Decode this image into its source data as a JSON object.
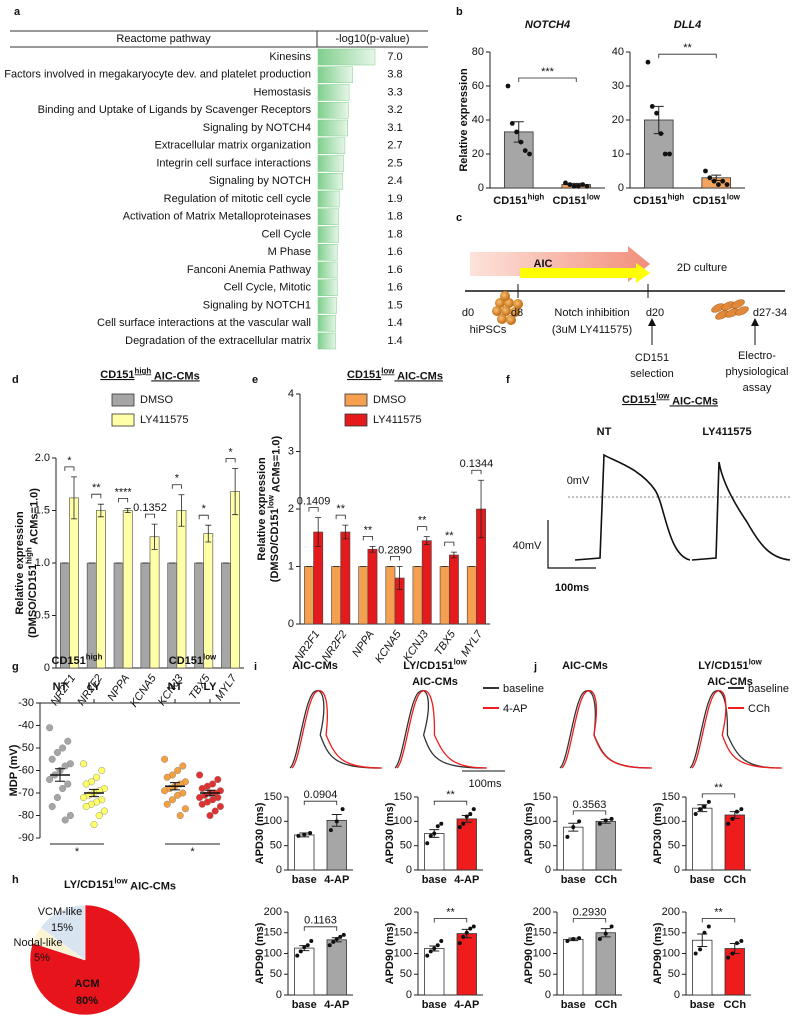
{
  "panel_labels": [
    "a",
    "b",
    "c",
    "d",
    "e",
    "f",
    "g",
    "h",
    "i",
    "j"
  ],
  "diagram": {
    "phases": [
      "AIC",
      "2D culture"
    ],
    "days": [
      "d0",
      "d8",
      "d20",
      "d27-34"
    ],
    "start": "hiPSCs",
    "treatment": [
      "Notch inhibition",
      "(3uM LY411575)"
    ],
    "selection": [
      "CD151",
      "selection"
    ],
    "assay": [
      "Electro-",
      "physiological",
      "assay"
    ]
  },
  "trace_panels": {
    "f": {
      "title": [
        "CD151",
        "low",
        " AIC-CMs"
      ],
      "labels": [
        "NT",
        "LY411575"
      ],
      "zero": "0mV",
      "scale_y": "40mV",
      "scale_x": "100ms"
    },
    "i": {
      "titles": [
        "AIC-CMs",
        [
          "LY/CD151",
          "low"
        ],
        "AIC-CMs"
      ],
      "legend": [
        "baseline",
        "4-AP"
      ],
      "colors": [
        "#333333",
        "#ee1c1c"
      ],
      "scale_x": "100ms"
    },
    "j": {
      "titles": [
        "AIC-CMs",
        [
          "LY/CD151",
          "low"
        ],
        "AIC-CMs"
      ],
      "legend": [
        "baseline",
        "CCh"
      ],
      "colors": [
        "#333333",
        "#ee1c1c"
      ]
    }
  },
  "chart_data": [
    {
      "type": "table-bar",
      "column_headers": [
        "Reactome pathway",
        "-log10(p-value)"
      ],
      "categories": [
        "Kinesins",
        "Factors involved in megakaryocyte dev. and platelet production",
        "Hemostasis",
        "Binding and Uptake of Ligands by Scavenger Receptors",
        "Signaling by NOTCH4",
        "Extracellular matrix organization",
        "Integrin cell surface interactions",
        "Signaling by NOTCH",
        "Regulation of mitotic cell cycle",
        "Activation of Matrix Metalloproteinases",
        "Cell Cycle",
        "M Phase",
        "Fanconi Anemia Pathway",
        "Cell Cycle, Mitotic",
        "Signaling by NOTCH1",
        "Cell surface interactions at the vascular wall",
        "Degradation of the extracellular matrix"
      ],
      "values": [
        7.0,
        3.8,
        3.3,
        3.2,
        3.1,
        2.7,
        2.5,
        2.4,
        1.9,
        1.8,
        1.8,
        1.6,
        1.6,
        1.6,
        1.5,
        1.4,
        1.4
      ],
      "value_labels": [
        "7.0",
        "3.8",
        "3.3",
        "3.2",
        "3.1",
        "2.7",
        "2.5",
        "2.4",
        "1.9",
        "1.8",
        "1.8",
        "1.6",
        "1.6",
        "1.6",
        "1.5",
        "1.4",
        "1.4"
      ],
      "color": "#7fcf8c"
    },
    {
      "type": "bar",
      "title": "NOTCH4",
      "ylabel": "Relative expression",
      "categories": [
        [
          "CD151",
          "high"
        ],
        [
          "CD151",
          "low"
        ]
      ],
      "values": [
        33,
        2
      ],
      "errors": [
        6,
        0.7
      ],
      "points": [
        [
          60,
          38,
          33,
          27,
          22,
          20
        ],
        [
          3,
          2,
          1,
          1,
          2,
          1
        ]
      ],
      "colors": [
        "#a6a6a6",
        "#f4a460"
      ],
      "annotation": "***",
      "ylim": [
        0,
        80
      ],
      "yticks": [
        0,
        20,
        40,
        60,
        80
      ]
    },
    {
      "type": "bar",
      "title": "DLL4",
      "categories": [
        [
          "CD151",
          "high"
        ],
        [
          "CD151",
          "low"
        ]
      ],
      "values": [
        20,
        3
      ],
      "errors": [
        4,
        0.8
      ],
      "points": [
        [
          37,
          24,
          22,
          16,
          10,
          10
        ],
        [
          5,
          3,
          2,
          1,
          2,
          1
        ]
      ],
      "colors": [
        "#a6a6a6",
        "#f4a460"
      ],
      "annotation": "**",
      "ylim": [
        0,
        40
      ],
      "yticks": [
        0,
        10,
        20,
        30,
        40
      ]
    },
    {
      "type": "grouped-bar",
      "title": [
        "CD151",
        "high",
        " AIC-CMs"
      ],
      "ylabel": "Relative expression",
      "ylabel2": [
        "(DMSO/CD151",
        "high",
        " ACMs=1.0)"
      ],
      "categories": [
        "NR2F1",
        "NR2F2",
        "NPPA",
        "KCNA5",
        "KCNJ3",
        "TBX5",
        "MYL7"
      ],
      "series": [
        {
          "name": "DMSO",
          "color": "#a6a6a6",
          "values": [
            1,
            1,
            1,
            1,
            1,
            1,
            1
          ],
          "errors": [
            0,
            0,
            0,
            0,
            0,
            0,
            0
          ]
        },
        {
          "name": "LY411575",
          "color": "#ffffa8",
          "values": [
            1.62,
            1.5,
            1.5,
            1.25,
            1.5,
            1.28,
            1.68
          ],
          "errors": [
            0.2,
            0.06,
            0.02,
            0.12,
            0.15,
            0.08,
            0.22
          ]
        }
      ],
      "annotations": [
        "*",
        "**",
        "****",
        "0.1352",
        "*",
        "*",
        "*"
      ],
      "ylim": [
        0,
        2
      ],
      "yticks": [
        0,
        0.5,
        {
          "value": 1,
          "label": "1.0"
        },
        1.5,
        {
          "value": 2,
          "label": "2.0"
        }
      ]
    },
    {
      "type": "grouped-bar",
      "title": [
        "CD151",
        "low",
        " AIC-CMs"
      ],
      "ylabel": "Relative expression",
      "ylabel2": [
        "(DMSO/CD151",
        "low",
        " ACMs=1.0)"
      ],
      "categories": [
        "NR2F1",
        "NR2F2",
        "NPPA",
        "KCNA5",
        "KCNJ3",
        "TBX5",
        "MYL7"
      ],
      "series": [
        {
          "name": "DMSO",
          "color": "#f4a050",
          "values": [
            1,
            1,
            1,
            1,
            1,
            1,
            1
          ],
          "errors": [
            0,
            0,
            0,
            0,
            0,
            0,
            0
          ]
        },
        {
          "name": "LY411575",
          "color": "#e41a1c",
          "values": [
            1.6,
            1.6,
            1.3,
            0.8,
            1.45,
            1.2,
            2.0
          ],
          "errors": [
            0.25,
            0.12,
            0.05,
            0.2,
            0.07,
            0.05,
            0.5
          ]
        }
      ],
      "annotations": [
        "0.1409",
        "**",
        "**",
        "0.2890",
        "**",
        "**",
        "0.1344"
      ],
      "ylim": [
        0,
        4
      ],
      "yticks": [
        0,
        1,
        2,
        3,
        4
      ]
    },
    {
      "type": "strip",
      "ylabel": "MDP (mV)",
      "group_labels": [
        [
          "CD151",
          "high"
        ],
        [
          "CD151",
          "low"
        ]
      ],
      "categories": [
        "NT",
        "LY",
        "NT",
        "LY"
      ],
      "colors": [
        "#a6a6a6",
        "#ffff66",
        "#f4a040",
        "#e03030"
      ],
      "points": [
        [
          -41,
          -47,
          -50,
          -52,
          -55,
          -57,
          -58,
          -60,
          -62,
          -64,
          -66,
          -68,
          -72,
          -76,
          -80,
          -82
        ],
        [
          -57,
          -60,
          -63,
          -65,
          -66,
          -68,
          -69,
          -70,
          -71,
          -72,
          -73,
          -74,
          -75,
          -76,
          -78,
          -80,
          -84
        ],
        [
          -55,
          -58,
          -60,
          -62,
          -63,
          -65,
          -66,
          -67,
          -68,
          -69,
          -70,
          -71,
          -73,
          -75,
          -77,
          -80
        ],
        [
          -62,
          -64,
          -66,
          -67,
          -68,
          -69,
          -70,
          -70,
          -71,
          -72,
          -72,
          -73,
          -74,
          -75,
          -76,
          -78,
          -80
        ]
      ],
      "means": [
        -62,
        -70,
        -67,
        -70
      ],
      "errors": [
        2.8,
        1.6,
        1.6,
        1.2
      ],
      "annotations": [
        "*",
        "*"
      ],
      "ylim": [
        -90,
        -30
      ],
      "yticks": [
        -90,
        -80,
        -70,
        -60,
        -50,
        -40,
        -30
      ]
    },
    {
      "type": "pie",
      "title": [
        "LY/CD151",
        "low",
        " AIC-CMs"
      ],
      "categories": [
        "ACM",
        "Nodal-like",
        "VCM-like"
      ],
      "values": [
        80,
        5,
        15
      ],
      "value_labels": [
        "80%",
        "5%",
        "15%"
      ],
      "colors": [
        "#e8141c",
        "#fbf4d2",
        "#d8e4ef"
      ]
    },
    {
      "type": "bar",
      "ylabel": "APD30 (ms)",
      "categories": [
        "base",
        "4-AP"
      ],
      "values": [
        72,
        102
      ],
      "errors": [
        4,
        12
      ],
      "points": [
        [
          70,
          73,
          76
        ],
        [
          82,
          100,
          125
        ]
      ],
      "colors": [
        "#ffffff",
        "#a6a6a6"
      ],
      "annotation": "0.0904",
      "ylim": [
        0,
        150
      ],
      "yticks": [
        0,
        50,
        100,
        150
      ]
    },
    {
      "type": "bar",
      "ylabel": "APD30 (ms)",
      "categories": [
        "base",
        "4-AP"
      ],
      "values": [
        75,
        105
      ],
      "errors": [
        8,
        7
      ],
      "points": [
        [
          55,
          70,
          75,
          90,
          95
        ],
        [
          88,
          95,
          110,
          115,
          125
        ]
      ],
      "colors": [
        "#ffffff",
        "#ee1c1c"
      ],
      "annotation": "**",
      "ylim": [
        0,
        150
      ],
      "yticks": [
        0,
        50,
        100,
        150
      ]
    },
    {
      "type": "bar",
      "ylabel": "APD90 (ms)",
      "categories": [
        "base",
        "4-AP"
      ],
      "values": [
        113,
        133
      ],
      "errors": [
        6,
        5
      ],
      "points": [
        [
          95,
          105,
          115,
          120,
          130
        ],
        [
          120,
          128,
          135,
          140,
          145
        ]
      ],
      "colors": [
        "#ffffff",
        "#a6a6a6"
      ],
      "annotation": "0.1163",
      "ylim": [
        0,
        200
      ],
      "yticks": [
        0,
        50,
        100,
        150,
        200
      ]
    },
    {
      "type": "bar",
      "ylabel": "APD90 (ms)",
      "categories": [
        "base",
        "4-AP"
      ],
      "values": [
        112,
        148
      ],
      "errors": [
        6,
        10
      ],
      "points": [
        [
          95,
          105,
          112,
          120,
          130
        ],
        [
          125,
          140,
          150,
          160,
          165
        ]
      ],
      "colors": [
        "#ffffff",
        "#ee1c1c"
      ],
      "annotation": "**",
      "ylim": [
        0,
        200
      ],
      "yticks": [
        0,
        50,
        100,
        150,
        200
      ]
    },
    {
      "type": "bar",
      "ylabel": "APD30 (ms)",
      "categories": [
        "base",
        "CCh"
      ],
      "values": [
        88,
        100
      ],
      "errors": [
        8,
        4
      ],
      "points": [
        [
          68,
          88,
          100
        ],
        [
          95,
          102,
          105
        ]
      ],
      "colors": [
        "#ffffff",
        "#a6a6a6"
      ],
      "annotation": "0.3563",
      "ylim": [
        0,
        150
      ],
      "yticks": [
        0,
        50,
        100,
        150
      ]
    },
    {
      "type": "bar",
      "ylabel": "APD30 (ms)",
      "categories": [
        "base",
        "CCh"
      ],
      "values": [
        127,
        113
      ],
      "errors": [
        7,
        7
      ],
      "points": [
        [
          115,
          125,
          130,
          140
        ],
        [
          95,
          105,
          120,
          125
        ]
      ],
      "colors": [
        "#ffffff",
        "#ee1c1c"
      ],
      "annotation": "**",
      "ylim": [
        0,
        150
      ],
      "yticks": [
        0,
        50,
        100,
        150
      ]
    },
    {
      "type": "bar",
      "ylabel": "APD90 (ms)",
      "categories": [
        "base",
        "CCh"
      ],
      "values": [
        134,
        150
      ],
      "errors": [
        3,
        10
      ],
      "points": [
        [
          130,
          135,
          137
        ],
        [
          135,
          148,
          165
        ]
      ],
      "colors": [
        "#ffffff",
        "#a6a6a6"
      ],
      "annotation": "0.2930",
      "ylim": [
        0,
        200
      ],
      "yticks": [
        0,
        50,
        100,
        150,
        200
      ]
    },
    {
      "type": "bar",
      "ylabel": "APD90 (ms)",
      "categories": [
        "base",
        "CCh"
      ],
      "values": [
        132,
        112
      ],
      "errors": [
        15,
        12
      ],
      "points": [
        [
          100,
          110,
          150,
          165
        ],
        [
          90,
          100,
          125,
          130
        ]
      ],
      "colors": [
        "#ffffff",
        "#ee1c1c"
      ],
      "annotation": "**",
      "ylim": [
        0,
        200
      ],
      "yticks": [
        0,
        50,
        100,
        150,
        200
      ]
    }
  ]
}
